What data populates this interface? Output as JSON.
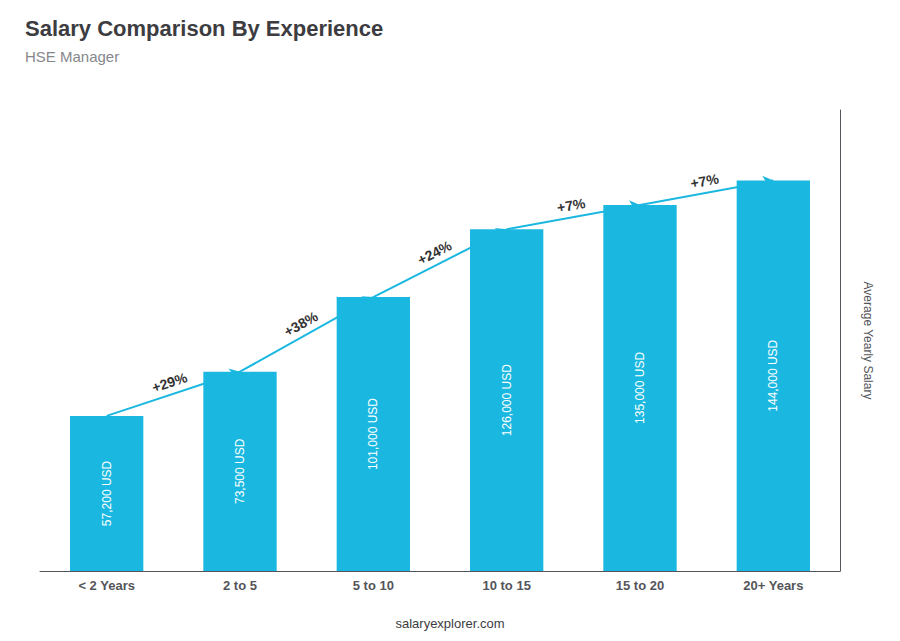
{
  "chart_data": {
    "type": "bar",
    "title": "Salary Comparison By Experience",
    "subtitle": "HSE Manager",
    "categories": [
      "< 2 Years",
      "2 to 5",
      "5 to 10",
      "10 to 15",
      "15 to 20",
      "20+ Years"
    ],
    "values": [
      57200,
      73500,
      101000,
      126000,
      135000,
      144000
    ],
    "value_labels": [
      "57,200 USD",
      "73,500 USD",
      "101,000 USD",
      "126,000 USD",
      "135,000 USD",
      "144,000 USD"
    ],
    "data_labels": true,
    "annotations": [
      "+29%",
      "+38%",
      "+24%",
      "+7%",
      "+7%"
    ],
    "color": "#1ab8e0",
    "ylabel": "Average Yearly Salary",
    "footer": "salaryexplorer.com",
    "ylim": [
      0,
      170000
    ],
    "tick_labels": "x",
    "grid": false
  }
}
